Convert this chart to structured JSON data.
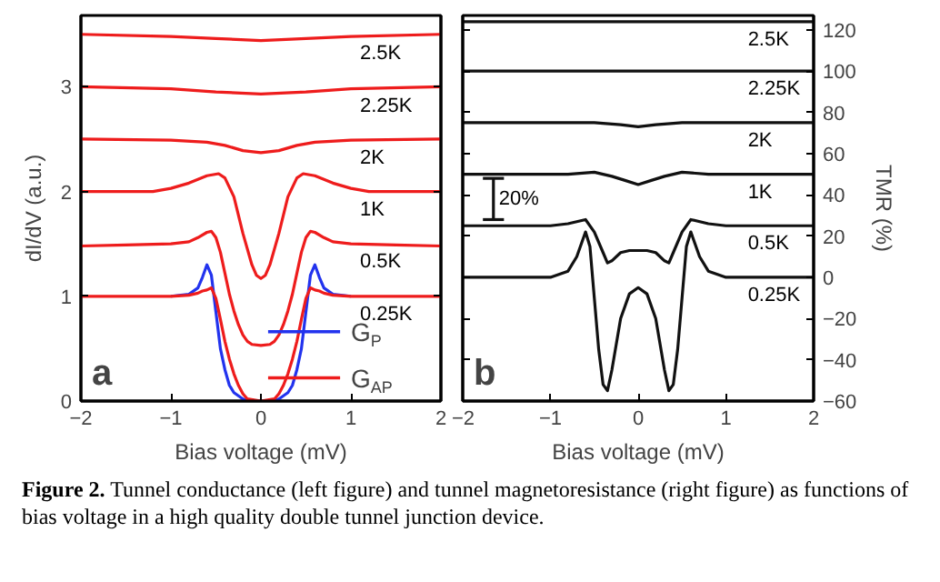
{
  "chart_data": [
    {
      "type": "line",
      "xlabel": "Bias voltage (mV)",
      "ylabel": "dI/dV (a.u.)",
      "xlim": [
        -2,
        2
      ],
      "ylim": [
        0,
        3.68
      ],
      "xticks": [
        -2,
        -1,
        0,
        1,
        2
      ],
      "yticks": [
        0,
        1,
        2,
        3
      ],
      "grid": false,
      "legend": "bottom right",
      "series": [
        {
          "name": "G$_{P}$",
          "color": "#2233ee",
          "x": [
            -1,
            -0.8,
            -0.7,
            -0.65,
            -0.6,
            -0.55,
            -0.5,
            -0.45,
            -0.4,
            -0.35,
            -0.3,
            -0.25,
            -0.2,
            -0.15,
            0,
            0.15,
            0.2,
            0.25,
            0.3,
            0.35,
            0.4,
            0.45,
            0.5,
            0.55,
            0.6,
            0.65,
            0.7,
            0.8,
            1
          ],
          "values": [
            1.0,
            1.02,
            1.08,
            1.18,
            1.3,
            1.2,
            0.85,
            0.5,
            0.3,
            0.15,
            0.08,
            0.05,
            0.02,
            0.0,
            0.0,
            0.0,
            0.02,
            0.05,
            0.08,
            0.15,
            0.3,
            0.5,
            0.85,
            1.2,
            1.3,
            1.18,
            1.08,
            1.02,
            1.0
          ]
        },
        {
          "name": "G$_{AP}$",
          "color": "#ee1c1c",
          "x": [
            -2,
            -1.5,
            -1,
            -0.8,
            -0.7,
            -0.65,
            -0.6,
            -0.55,
            -0.5,
            -0.45,
            -0.4,
            -0.35,
            -0.3,
            -0.25,
            -0.2,
            -0.15,
            0,
            0.15,
            0.2,
            0.25,
            0.3,
            0.35,
            0.4,
            0.45,
            0.5,
            0.55,
            0.6,
            0.65,
            0.7,
            0.8,
            1,
            1.5,
            2
          ],
          "values": [
            1.0,
            1.0,
            1.0,
            1.01,
            1.03,
            1.05,
            1.06,
            1.08,
            0.98,
            0.78,
            0.57,
            0.4,
            0.26,
            0.15,
            0.07,
            0.02,
            0.0,
            0.02,
            0.07,
            0.15,
            0.26,
            0.4,
            0.57,
            0.78,
            0.98,
            1.08,
            1.06,
            1.05,
            1.03,
            1.01,
            1.0,
            1.0,
            1.0
          ]
        },
        {
          "color": "#ee1c1c",
          "x": [
            -2,
            -1.5,
            -1,
            -0.8,
            -0.7,
            -0.6,
            -0.55,
            -0.5,
            -0.45,
            -0.4,
            -0.35,
            -0.3,
            -0.25,
            -0.2,
            -0.15,
            -0.1,
            0,
            0.1,
            0.15,
            0.2,
            0.25,
            0.3,
            0.35,
            0.4,
            0.45,
            0.5,
            0.55,
            0.6,
            0.7,
            0.8,
            1,
            1.5,
            2
          ],
          "values": [
            1.48,
            1.49,
            1.5,
            1.52,
            1.56,
            1.61,
            1.62,
            1.56,
            1.42,
            1.22,
            1.02,
            0.86,
            0.73,
            0.63,
            0.57,
            0.54,
            0.53,
            0.54,
            0.57,
            0.63,
            0.73,
            0.86,
            1.02,
            1.22,
            1.42,
            1.56,
            1.62,
            1.61,
            1.56,
            1.52,
            1.5,
            1.49,
            1.48
          ]
        },
        {
          "color": "#ee1c1c",
          "x": [
            -2,
            -1.5,
            -1.2,
            -1,
            -0.8,
            -0.6,
            -0.47,
            -0.4,
            -0.3,
            -0.2,
            -0.1,
            -0.05,
            0,
            0.05,
            0.1,
            0.2,
            0.3,
            0.4,
            0.47,
            0.6,
            0.8,
            1,
            1.2,
            1.5,
            2
          ],
          "values": [
            2.0,
            2.0,
            2.0,
            2.03,
            2.08,
            2.15,
            2.17,
            2.13,
            1.95,
            1.6,
            1.3,
            1.2,
            1.17,
            1.2,
            1.3,
            1.6,
            1.95,
            2.13,
            2.17,
            2.15,
            2.08,
            2.03,
            2.0,
            2.0,
            2.0
          ]
        },
        {
          "color": "#ee1c1c",
          "x": [
            -2,
            -1,
            -0.6,
            -0.4,
            -0.2,
            0,
            0.2,
            0.4,
            0.6,
            1,
            2
          ],
          "values": [
            2.5,
            2.49,
            2.47,
            2.44,
            2.39,
            2.37,
            2.39,
            2.44,
            2.47,
            2.49,
            2.5
          ]
        },
        {
          "color": "#ee1c1c",
          "x": [
            -2,
            -1,
            -0.5,
            0,
            0.5,
            1,
            2
          ],
          "values": [
            3.0,
            2.98,
            2.95,
            2.93,
            2.95,
            2.98,
            3.0
          ]
        },
        {
          "color": "#ee1c1c",
          "x": [
            -2,
            -1,
            -0.5,
            0,
            0.5,
            1,
            2
          ],
          "values": [
            3.5,
            3.48,
            3.46,
            3.44,
            3.46,
            3.48,
            3.5
          ]
        }
      ],
      "annotations": [
        {
          "text": "2.5K",
          "x": 1.1,
          "y": 3.49
        },
        {
          "text": "2.25K",
          "x": 1.1,
          "y": 2.99
        },
        {
          "text": "2K",
          "x": 1.1,
          "y": 2.49
        },
        {
          "text": "1K",
          "x": 1.1,
          "y": 2.0
        },
        {
          "text": "0.5K",
          "x": 1.1,
          "y": 1.5
        },
        {
          "text": "0.25K",
          "x": 1.1,
          "y": 1.0
        },
        "a"
      ]
    },
    {
      "type": "line",
      "xlabel": "Bias voltage (mV)",
      "ylabel": "TMR (%)",
      "xlim": [
        -2,
        2
      ],
      "ylim": [
        -60,
        127
      ],
      "xticks": [
        -2,
        -1,
        0,
        1,
        2
      ],
      "yticks": [
        -60,
        -40,
        -20,
        0,
        20,
        40,
        60,
        80,
        100,
        120
      ],
      "grid": false,
      "series": [
        {
          "color": "#111111",
          "x": [
            -2,
            2
          ],
          "values": [
            124,
            124
          ]
        },
        {
          "color": "#111111",
          "x": [
            -2,
            2
          ],
          "values": [
            100,
            100
          ]
        },
        {
          "color": "#111111",
          "x": [
            -2,
            -0.5,
            -0.2,
            0,
            0.2,
            0.5,
            2
          ],
          "values": [
            75,
            75,
            74,
            73,
            74,
            75,
            75
          ]
        },
        {
          "color": "#111111",
          "x": [
            -2,
            -0.8,
            -0.5,
            -0.3,
            -0.15,
            0,
            0.15,
            0.3,
            0.5,
            0.8,
            2
          ],
          "values": [
            50,
            50,
            51,
            49,
            47,
            45,
            47,
            49,
            51,
            50,
            50
          ]
        },
        {
          "color": "#111111",
          "x": [
            -2,
            -1,
            -0.8,
            -0.6,
            -0.5,
            -0.4,
            -0.35,
            -0.3,
            -0.2,
            -0.1,
            0,
            0.1,
            0.2,
            0.3,
            0.35,
            0.4,
            0.5,
            0.6,
            0.8,
            1,
            2
          ],
          "values": [
            25,
            25,
            26,
            28,
            22,
            12,
            7,
            8,
            12,
            13,
            13,
            13,
            12,
            8,
            7,
            12,
            22,
            28,
            26,
            25,
            25
          ]
        },
        {
          "color": "#111111",
          "x": [
            -2,
            -1,
            -0.8,
            -0.7,
            -0.6,
            -0.55,
            -0.5,
            -0.45,
            -0.4,
            -0.35,
            -0.3,
            -0.2,
            -0.1,
            0,
            0.1,
            0.2,
            0.3,
            0.35,
            0.4,
            0.45,
            0.5,
            0.55,
            0.6,
            0.7,
            0.8,
            1,
            2
          ],
          "values": [
            0,
            0,
            3,
            10,
            22,
            15,
            -10,
            -35,
            -52,
            -55,
            -45,
            -20,
            -8,
            -5,
            -8,
            -20,
            -45,
            -55,
            -52,
            -35,
            -10,
            15,
            22,
            10,
            3,
            0,
            0
          ]
        },
        {
          "color": "#111111",
          "x": [
            -1.65,
            -1.65
          ],
          "values": [
            28,
            48
          ]
        }
      ],
      "annotations": [
        {
          "text": "20%",
          "x": -1.65,
          "y": 38
        },
        {
          "text": "2.5K",
          "x": 1.25,
          "y": 124
        },
        {
          "text": "2.25K",
          "x": 1.25,
          "y": 100
        },
        {
          "text": "2K",
          "x": 1.25,
          "y": 75
        },
        {
          "text": "1K",
          "x": 1.25,
          "y": 50
        },
        {
          "text": "0.5K",
          "x": 1.25,
          "y": 25
        },
        {
          "text": "0.25K",
          "x": 1.25,
          "y": 0
        },
        "b"
      ]
    },
    {
      "type": "other",
      "annotations": [
        "Figure 2. Tunnel conductance (left figure) and tunnel magnetoresistance (right figure) as functions of bias voltage in a high quality double tunnel junction device."
      ]
    }
  ]
}
